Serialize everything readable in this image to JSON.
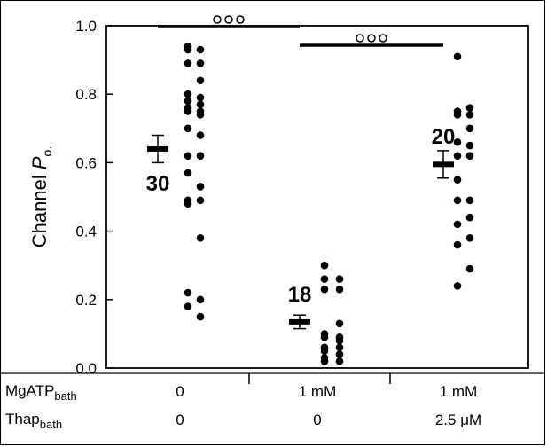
{
  "chart_data": {
    "type": "scatter",
    "ylabel_main": "Channel ",
    "ylabel_italic": "P",
    "ylabel_sub": "o.",
    "ylim": [
      0,
      1.0
    ],
    "yticks": [
      "0.0",
      "0.2",
      "0.4",
      "0.6",
      "0.8",
      "1.0"
    ],
    "ytick_values": [
      0,
      0.2,
      0.4,
      0.6,
      0.8,
      1.0
    ],
    "groups": [
      {
        "n_label": "30",
        "mean": 0.64,
        "sem": 0.04,
        "points": [
          0.94,
          0.93,
          0.93,
          0.89,
          0.89,
          0.84,
          0.8,
          0.79,
          0.78,
          0.77,
          0.76,
          0.75,
          0.75,
          0.74,
          0.7,
          0.68,
          0.62,
          0.62,
          0.57,
          0.53,
          0.49,
          0.49,
          0.48,
          0.38,
          0.22,
          0.2,
          0.18,
          0.15
        ]
      },
      {
        "n_label": "18",
        "mean": 0.135,
        "sem": 0.02,
        "points": [
          0.3,
          0.26,
          0.26,
          0.23,
          0.23,
          0.13,
          0.1,
          0.09,
          0.09,
          0.08,
          0.06,
          0.06,
          0.05,
          0.04,
          0.03,
          0.02,
          0.02
        ]
      },
      {
        "n_label": "20",
        "mean": 0.595,
        "sem": 0.04,
        "points": [
          0.91,
          0.76,
          0.75,
          0.74,
          0.74,
          0.7,
          0.66,
          0.65,
          0.62,
          0.62,
          0.55,
          0.49,
          0.49,
          0.44,
          0.42,
          0.38,
          0.36,
          0.29,
          0.24
        ]
      }
    ],
    "significance": [
      {
        "from_group": 0,
        "to_group": 1,
        "label": "ooo"
      },
      {
        "from_group": 1,
        "to_group": 2,
        "label": "ooo"
      }
    ],
    "conditions": {
      "row1_label": "MgATP",
      "row1_sub": "bath",
      "row1_values": [
        "0",
        "1 mM",
        "1 mM"
      ],
      "row2_label": "Thap",
      "row2_sub": "bath",
      "row2_values": [
        "0",
        "0",
        "2.5 μM"
      ]
    }
  }
}
